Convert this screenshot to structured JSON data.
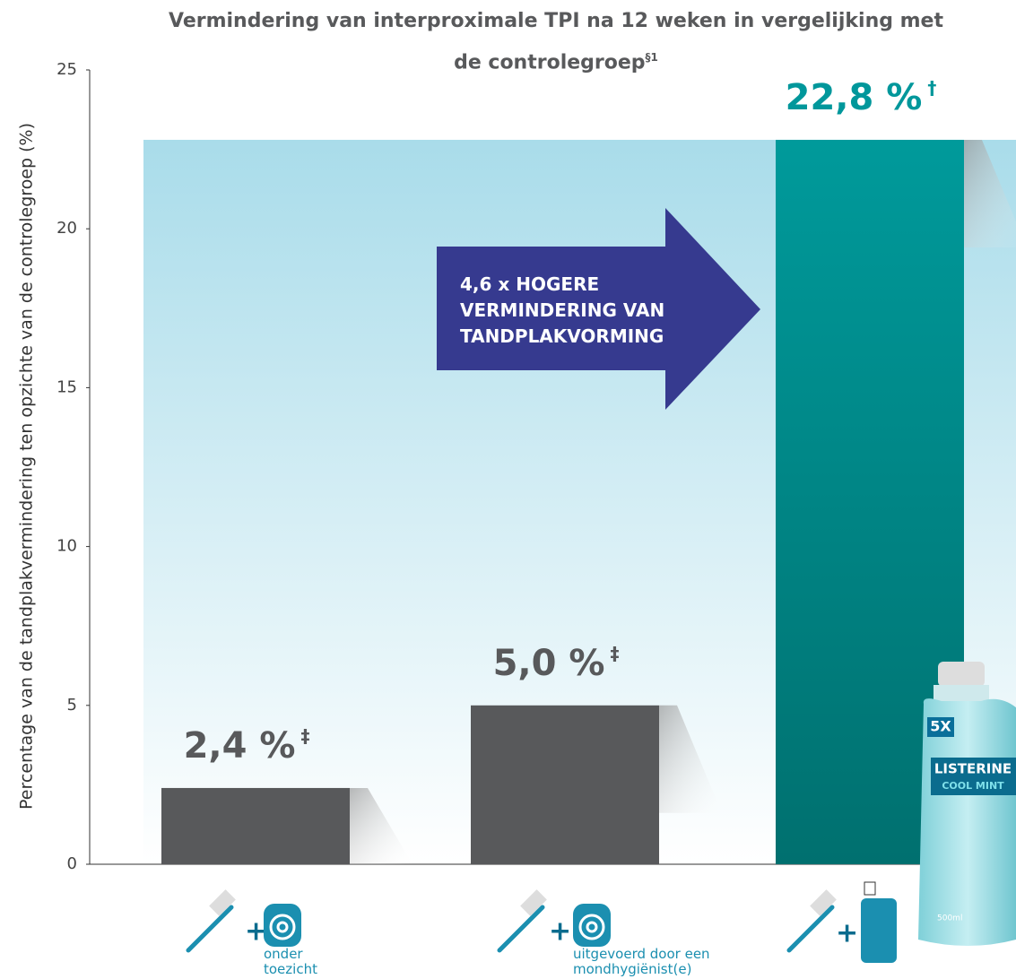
{
  "chart_data": {
    "type": "bar",
    "title": "Vermindering van interproximale TPI na 12 weken in vergelijking met de controlegroep",
    "title_note": "§1",
    "y_label": "Percentage van de tandplakvermindering ten opzichte van de controlegroep (%)",
    "categories": [
      "onder toezicht",
      "uitgevoerd door een mondhygiënist(e)",
      null
    ],
    "values": [
      2.4,
      5.0,
      22.8
    ],
    "value_labels": [
      "2,4 %",
      "5,0 %",
      "22,8 %"
    ],
    "value_notes": [
      "‡",
      "‡",
      "†"
    ],
    "colors": [
      "#58595b",
      "#58595b",
      "#00898b"
    ],
    "label_colors": [
      "#58595b",
      "#58595b",
      "#00979b"
    ],
    "ylim": [
      0,
      25
    ],
    "yticks": [
      0,
      5,
      10,
      15,
      20,
      25
    ],
    "annotation": "4,6 x HOGERE VERMINDERING VAN TANDPLAKVORMING",
    "product": {
      "claim": "5X",
      "brand": "LISTERINE",
      "variant": "COOL MINT",
      "volume": "500ml"
    }
  }
}
